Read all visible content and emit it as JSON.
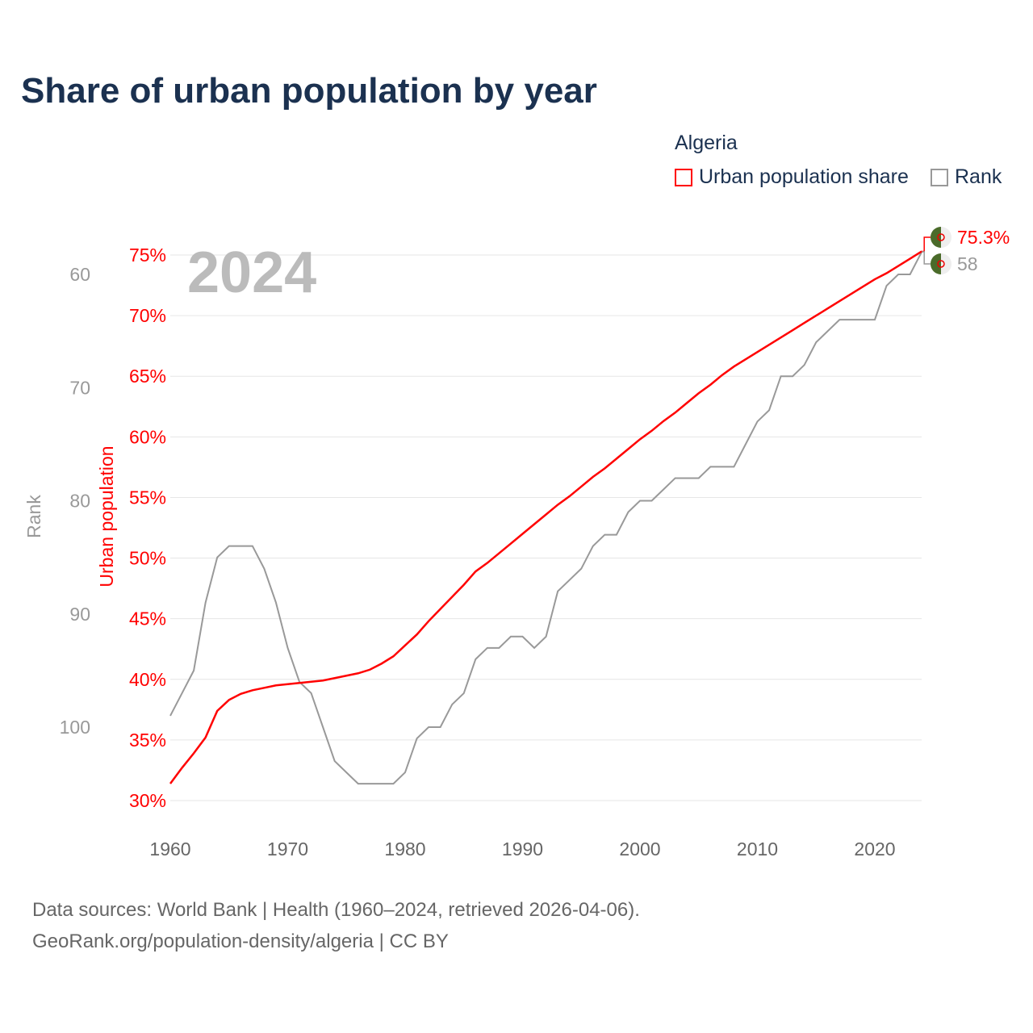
{
  "chart_data": {
    "type": "line",
    "title": "Share of urban population by year",
    "legend_title": "Algeria",
    "legend": [
      {
        "name": "Urban population share",
        "color": "#ff0000"
      },
      {
        "name": "Rank",
        "color": "#999999"
      }
    ],
    "legend_placement": "top-right",
    "year_label": "2024",
    "x": [
      1960,
      1961,
      1962,
      1963,
      1964,
      1965,
      1966,
      1967,
      1968,
      1969,
      1970,
      1971,
      1972,
      1973,
      1974,
      1975,
      1976,
      1977,
      1978,
      1979,
      1980,
      1981,
      1982,
      1983,
      1984,
      1985,
      1986,
      1987,
      1988,
      1989,
      1990,
      1991,
      1992,
      1993,
      1994,
      1995,
      1996,
      1997,
      1998,
      1999,
      2000,
      2001,
      2002,
      2003,
      2004,
      2005,
      2006,
      2007,
      2008,
      2009,
      2010,
      2011,
      2012,
      2013,
      2014,
      2015,
      2016,
      2017,
      2018,
      2019,
      2020,
      2021,
      2022,
      2023,
      2024
    ],
    "series": [
      {
        "name": "Urban population share",
        "axis": "left",
        "unit": "%",
        "values": [
          31.4,
          32.7,
          33.9,
          35.2,
          37.4,
          38.3,
          38.8,
          39.1,
          39.3,
          39.5,
          39.6,
          39.7,
          39.8,
          39.9,
          40.1,
          40.3,
          40.5,
          40.8,
          41.3,
          41.9,
          42.8,
          43.7,
          44.8,
          45.8,
          46.8,
          47.8,
          48.9,
          49.6,
          50.4,
          51.2,
          52.0,
          52.8,
          53.6,
          54.4,
          55.1,
          55.9,
          56.7,
          57.4,
          58.2,
          59.0,
          59.8,
          60.5,
          61.3,
          62.0,
          62.8,
          63.6,
          64.3,
          65.1,
          65.8,
          66.4,
          67.0,
          67.6,
          68.2,
          68.8,
          69.4,
          70.0,
          70.6,
          71.2,
          71.8,
          72.4,
          73.0,
          73.5,
          74.1,
          74.7,
          75.3
        ],
        "end_label": "75.3%"
      },
      {
        "name": "Rank",
        "axis": "right",
        "values": [
          99,
          97,
          95,
          89,
          85,
          84,
          84,
          84,
          86,
          89,
          93,
          96,
          97,
          100,
          103,
          104,
          105,
          105,
          105,
          105,
          104,
          101,
          100,
          100,
          98,
          97,
          94,
          93,
          93,
          92,
          92,
          93,
          92,
          88,
          87,
          86,
          84,
          83,
          83,
          81,
          80,
          80,
          79,
          78,
          78,
          78,
          77,
          77,
          77,
          75,
          73,
          72,
          69,
          69,
          68,
          66,
          65,
          64,
          64,
          64,
          64,
          61,
          60,
          60,
          58
        ],
        "end_label": "58"
      }
    ],
    "left_axis": {
      "label": "Urban population",
      "ylim": [
        30,
        75
      ],
      "ticks": [
        "30%",
        "35%",
        "40%",
        "45%",
        "50%",
        "55%",
        "60%",
        "65%",
        "70%",
        "75%"
      ],
      "color": "#ff0000"
    },
    "rank_axis": {
      "label": "Rank",
      "ticks": [
        "60",
        "70",
        "80",
        "90",
        "100"
      ],
      "inverted": true,
      "color": "#999999"
    },
    "x_ticks": [
      "1960",
      "1970",
      "1980",
      "1990",
      "2000",
      "2010",
      "2020"
    ],
    "grid": true
  },
  "footer": {
    "line1": "Data sources: World Bank | Health (1960–2024, retrieved 2026-04-06).",
    "line2": "GeoRank.org/population-density/algeria | CC BY"
  }
}
